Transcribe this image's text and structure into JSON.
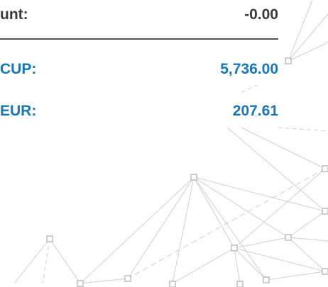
{
  "summary": {
    "rows": [
      {
        "label": "unt:",
        "value": "-0.00"
      },
      {
        "label": "CUP:",
        "value": "5,736.00"
      },
      {
        "label": "EUR:",
        "value": "207.61"
      }
    ]
  }
}
